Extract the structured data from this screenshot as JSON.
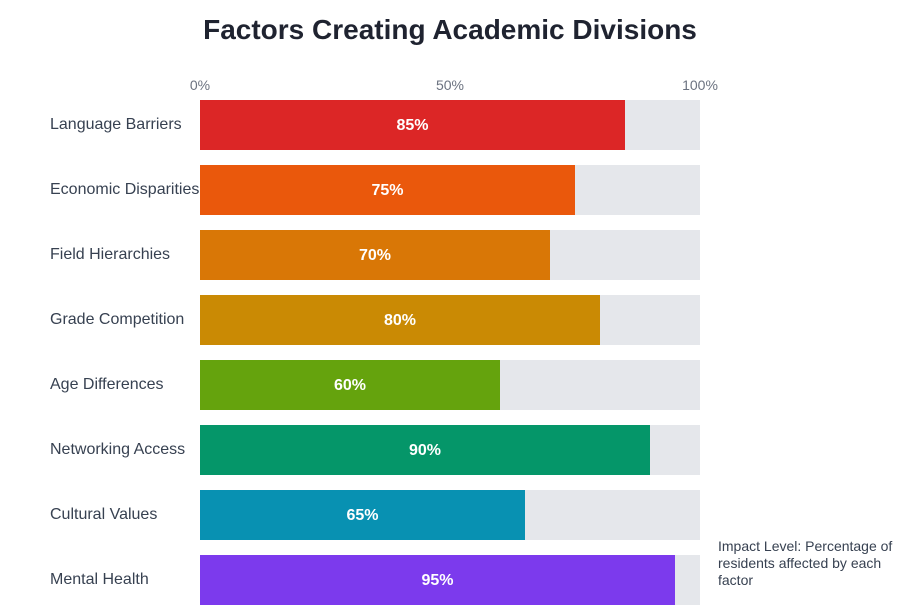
{
  "chart_data": {
    "type": "bar",
    "orientation": "horizontal",
    "title": "Factors Creating Academic Divisions",
    "x_ticks": [
      "0%",
      "50%",
      "100%"
    ],
    "xlim": [
      0,
      100
    ],
    "categories": [
      "Language Barriers",
      "Economic Disparities",
      "Field Hierarchies",
      "Grade Competition",
      "Age Differences",
      "Networking Access",
      "Cultural Values",
      "Mental Health"
    ],
    "values": [
      85,
      75,
      70,
      80,
      60,
      90,
      65,
      95
    ],
    "value_labels": [
      "85%",
      "75%",
      "70%",
      "80%",
      "60%",
      "90%",
      "65%",
      "95%"
    ],
    "colors": [
      "#dc2626",
      "#ea580c",
      "#d97706",
      "#ca8a04",
      "#65a30d",
      "#059669",
      "#0891b2",
      "#7c3aed"
    ],
    "track_color": "#e5e7eb",
    "note": "Impact Level: Percentage of residents affected by each factor"
  }
}
